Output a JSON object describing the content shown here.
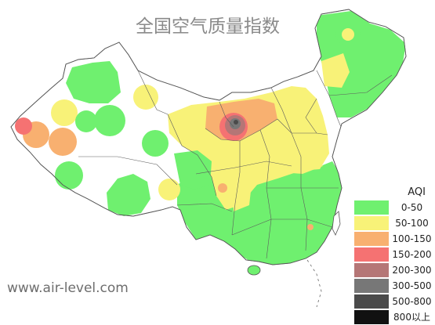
{
  "title": "全国空气质量指数",
  "watermark": "www.air-level.com",
  "legend": {
    "title": "AQI",
    "items": [
      {
        "label": "0-50",
        "color": "#6ff06f"
      },
      {
        "label": "50-100",
        "color": "#f8f278"
      },
      {
        "label": "100-150",
        "color": "#f8b070"
      },
      {
        "label": "150-200",
        "color": "#f57272"
      },
      {
        "label": "200-300",
        "color": "#b57676"
      },
      {
        "label": "300-500",
        "color": "#777777"
      },
      {
        "label": "500-800",
        "color": "#4a4a4a"
      },
      {
        "label": "800以上",
        "color": "#111111"
      }
    ]
  }
}
